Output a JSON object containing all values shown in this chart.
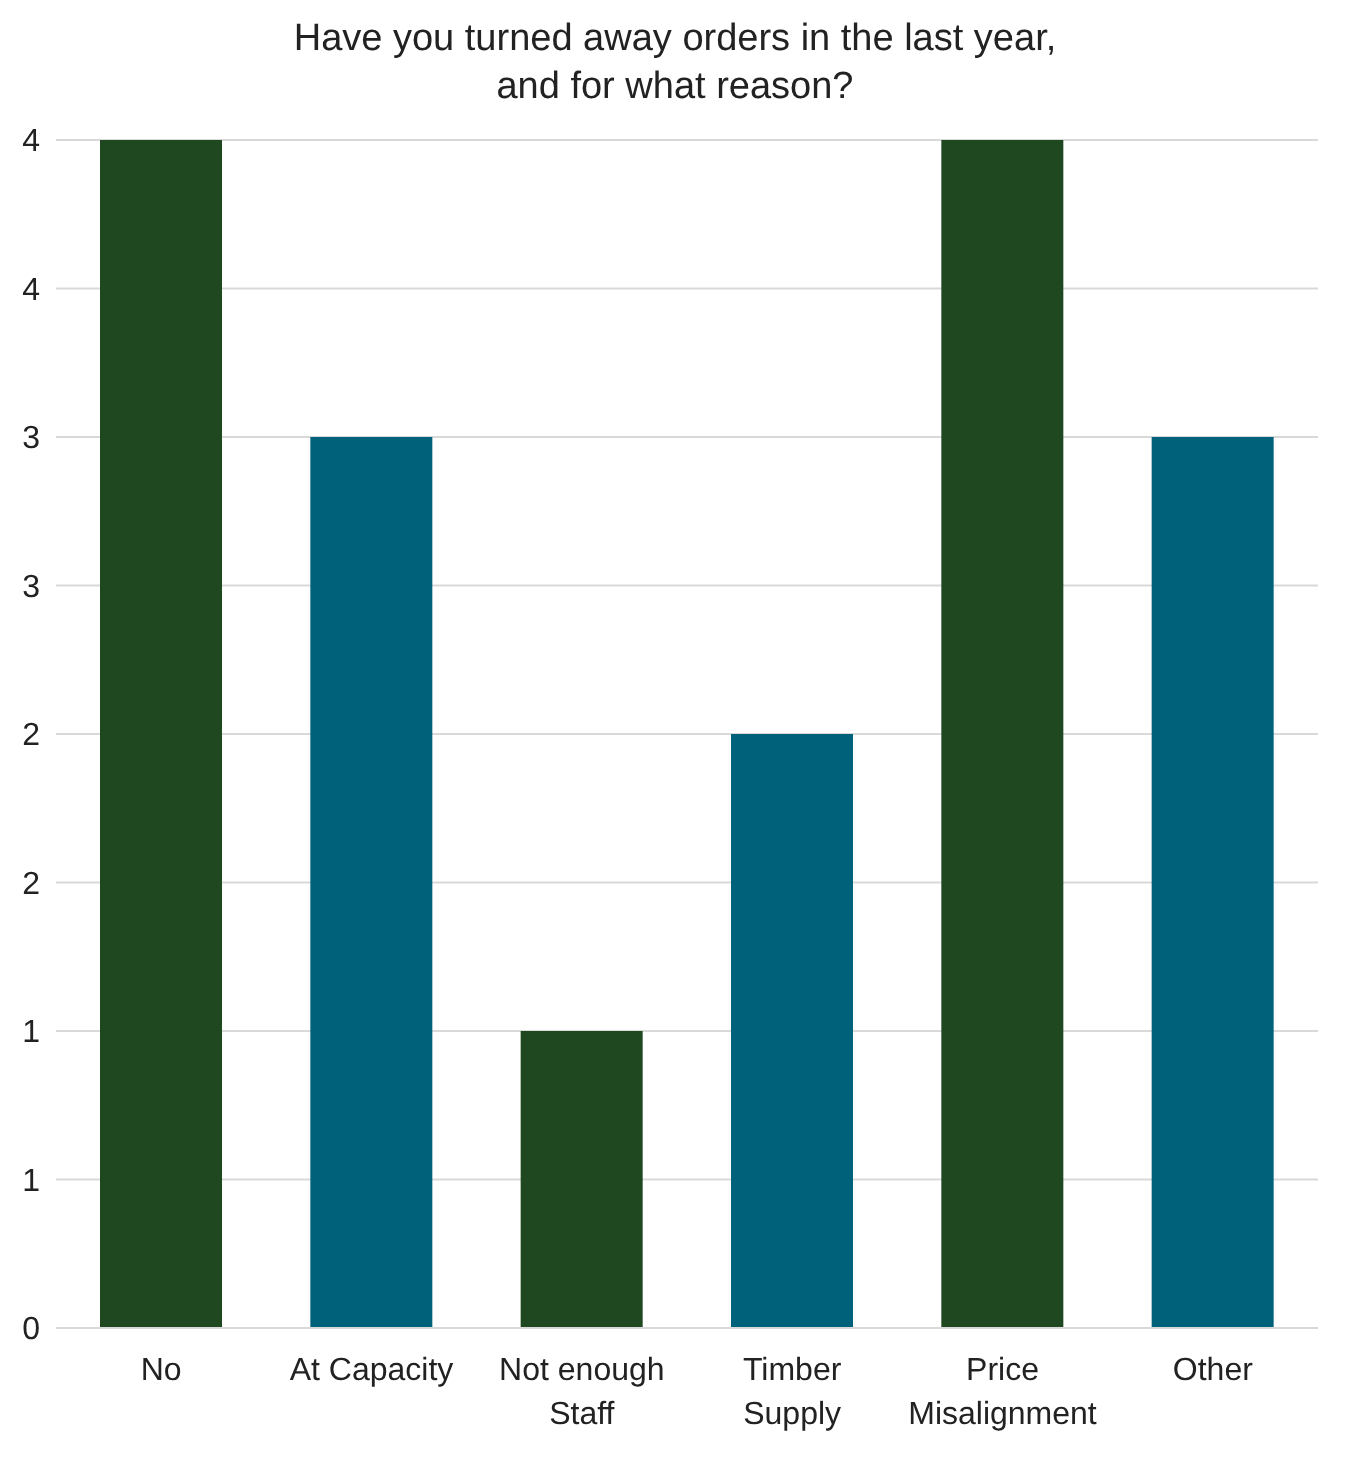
{
  "chart_data": {
    "type": "bar",
    "title": "Have you turned away orders in the last year,\nand for what reason?",
    "categories": [
      "No",
      "At Capacity",
      "Not enough Staff",
      "Timber Supply",
      "Price Misalignment",
      "Other"
    ],
    "values": [
      4,
      3,
      1,
      2,
      4,
      3
    ],
    "colors": [
      "#1f4720",
      "#00617a",
      "#1f4720",
      "#00617a",
      "#1f4720",
      "#00617a"
    ],
    "ylim": [
      0,
      4
    ],
    "yticks": [
      0,
      {
        "value": 0.5,
        "label": "1"
      },
      1,
      {
        "value": 1.5,
        "label": "2"
      },
      2,
      {
        "value": 2.5,
        "label": "3"
      },
      3,
      {
        "value": 3.5,
        "label": "4"
      },
      4
    ],
    "grid": "y"
  }
}
